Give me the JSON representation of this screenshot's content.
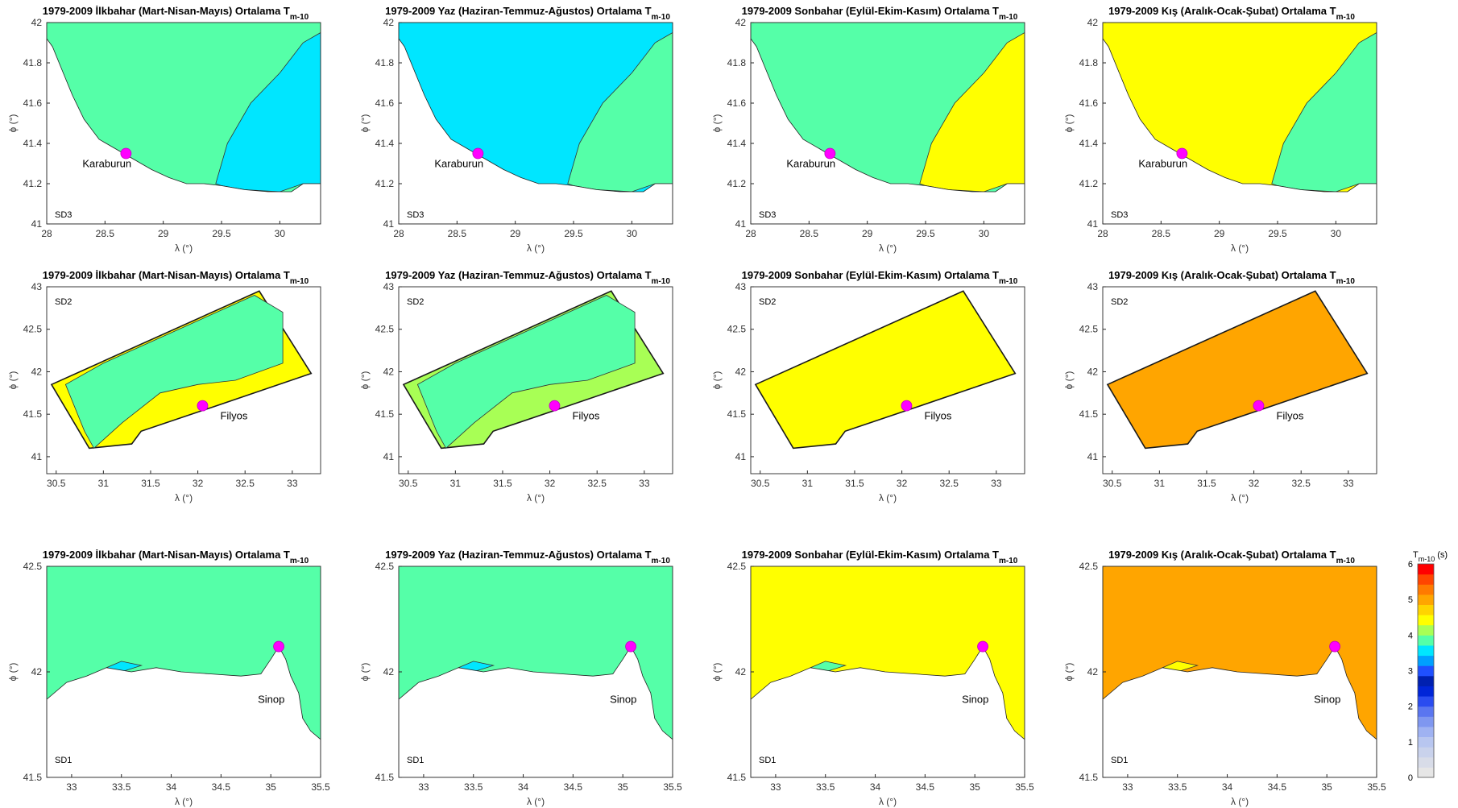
{
  "colorbar": {
    "title": "T",
    "title_sub": "m-10",
    "unit": "(s)",
    "range": [
      0,
      6
    ],
    "ticks": [
      "0",
      "1",
      "2",
      "3",
      "4",
      "5",
      "6"
    ],
    "colors": [
      "#e6e6e6",
      "#d8dce8",
      "#c9d2ec",
      "#b8c6f0",
      "#9fb2f2",
      "#7f97f0",
      "#5a76f0",
      "#2a4cf0",
      "#0025d8",
      "#0020b0",
      "#1f50ff",
      "#00a0ff",
      "#00e6ff",
      "#55ffa8",
      "#a8ff55",
      "#ffff00",
      "#ffd400",
      "#ffa500",
      "#ff7a00",
      "#ff4500",
      "#ff0000"
    ]
  },
  "chart_data": [
    {
      "type": "heatmap",
      "row": 0,
      "col": 0,
      "region": "SD3",
      "site": "Karaburun",
      "title": "1979-2009 İlkbahar (Mart-Nisan-Mayıs) Ortalama T",
      "title_sub": "m-10",
      "xlabel": "λ (°)",
      "ylabel": "ϕ (°)",
      "xlim": [
        28,
        30.35
      ],
      "ylim": [
        41,
        42
      ],
      "xticks": [
        "28",
        "28.5",
        "29",
        "29.5",
        "30"
      ],
      "yticks": [
        "41",
        "41.2",
        "41.4",
        "41.6",
        "41.8",
        "42"
      ],
      "site_point": {
        "x": 28.68,
        "y": 41.35
      },
      "dominant_period_s": 4.0,
      "secondary_period_s": 3.5
    },
    {
      "type": "heatmap",
      "row": 0,
      "col": 1,
      "region": "SD3",
      "site": "Karaburun",
      "title": "1979-2009 Yaz (Haziran-Temmuz-Ağustos) Ortalama T",
      "title_sub": "m-10",
      "xlabel": "λ (°)",
      "ylabel": "ϕ (°)",
      "xlim": [
        28,
        30.35
      ],
      "ylim": [
        41,
        42
      ],
      "xticks": [
        "28",
        "28.5",
        "29",
        "29.5",
        "30"
      ],
      "yticks": [
        "41",
        "41.2",
        "41.4",
        "41.6",
        "41.8",
        "42"
      ],
      "site_point": {
        "x": 28.68,
        "y": 41.35
      },
      "dominant_period_s": 3.5,
      "secondary_period_s": 4.0
    },
    {
      "type": "heatmap",
      "row": 0,
      "col": 2,
      "region": "SD3",
      "site": "Karaburun",
      "title": "1979-2009 Sonbahar (Eylül-Ekim-Kasım) Ortalama T",
      "title_sub": "m-10",
      "xlabel": "λ (°)",
      "ylabel": "ϕ (°)",
      "xlim": [
        28,
        30.35
      ],
      "ylim": [
        41,
        42
      ],
      "xticks": [
        "28",
        "28.5",
        "29",
        "29.5",
        "30"
      ],
      "yticks": [
        "41",
        "41.2",
        "41.4",
        "41.6",
        "41.8",
        "42"
      ],
      "site_point": {
        "x": 28.68,
        "y": 41.35
      },
      "dominant_period_s": 4.0,
      "secondary_period_s": 4.5
    },
    {
      "type": "heatmap",
      "row": 0,
      "col": 3,
      "region": "SD3",
      "site": "Karaburun",
      "title": "1979-2009 Kış (Aralık-Ocak-Şubat) Ortalama T",
      "title_sub": "m-10",
      "xlabel": "λ (°)",
      "ylabel": "ϕ (°)",
      "xlim": [
        28,
        30.35
      ],
      "ylim": [
        41,
        42
      ],
      "xticks": [
        "28",
        "28.5",
        "29",
        "29.5",
        "30"
      ],
      "yticks": [
        "41",
        "41.2",
        "41.4",
        "41.6",
        "41.8",
        "42"
      ],
      "site_point": {
        "x": 28.68,
        "y": 41.35
      },
      "dominant_period_s": 4.5,
      "secondary_period_s": 4.0
    },
    {
      "type": "heatmap",
      "row": 1,
      "col": 0,
      "region": "SD2",
      "site": "Filyos",
      "title": "1979-2009 İlkbahar (Mart-Nisan-Mayıs) Ortalama T",
      "title_sub": "m-10",
      "xlabel": "λ (°)",
      "ylabel": "ϕ (°)",
      "xlim": [
        30.4,
        33.3
      ],
      "ylim": [
        40.8,
        43
      ],
      "xticks": [
        "30.5",
        "31",
        "31.5",
        "32",
        "32.5",
        "33"
      ],
      "yticks": [
        "41",
        "41.5",
        "42",
        "42.5",
        "43"
      ],
      "site_point": {
        "x": 32.05,
        "y": 41.6
      },
      "dominant_period_s": 4.5,
      "secondary_period_s": 4.0
    },
    {
      "type": "heatmap",
      "row": 1,
      "col": 1,
      "region": "SD2",
      "site": "Filyos",
      "title": "1979-2009 Yaz (Haziran-Temmuz-Ağustos) Ortalama T",
      "title_sub": "m-10",
      "xlabel": "λ (°)",
      "ylabel": "ϕ (°)",
      "xlim": [
        30.4,
        33.3
      ],
      "ylim": [
        40.8,
        43
      ],
      "xticks": [
        "30.5",
        "31",
        "31.5",
        "32",
        "32.5",
        "33"
      ],
      "yticks": [
        "41",
        "41.5",
        "42",
        "42.5",
        "43"
      ],
      "site_point": {
        "x": 32.05,
        "y": 41.6
      },
      "dominant_period_s": 4.25,
      "secondary_period_s": 4.0
    },
    {
      "type": "heatmap",
      "row": 1,
      "col": 2,
      "region": "SD2",
      "site": "Filyos",
      "title": "1979-2009 Sonbahar (Eylül-Ekim-Kasım) Ortalama T",
      "title_sub": "m-10",
      "xlabel": "λ (°)",
      "ylabel": "ϕ (°)",
      "xlim": [
        30.4,
        33.3
      ],
      "ylim": [
        40.8,
        43
      ],
      "xticks": [
        "30.5",
        "31",
        "31.5",
        "32",
        "32.5",
        "33"
      ],
      "yticks": [
        "41",
        "41.5",
        "42",
        "42.5",
        "43"
      ],
      "site_point": {
        "x": 32.05,
        "y": 41.6
      },
      "dominant_period_s": 4.5,
      "secondary_period_s": 4.5
    },
    {
      "type": "heatmap",
      "row": 1,
      "col": 3,
      "region": "SD2",
      "site": "Filyos",
      "title": "1979-2009 Kış (Aralık-Ocak-Şubat) Ortalama T",
      "title_sub": "m-10",
      "xlabel": "λ (°)",
      "ylabel": "ϕ (°)",
      "xlim": [
        30.4,
        33.3
      ],
      "ylim": [
        40.8,
        43
      ],
      "xticks": [
        "30.5",
        "31",
        "31.5",
        "32",
        "32.5",
        "33"
      ],
      "yticks": [
        "41",
        "41.5",
        "42",
        "42.5",
        "43"
      ],
      "site_point": {
        "x": 32.05,
        "y": 41.6
      },
      "dominant_period_s": 5.0,
      "secondary_period_s": 5.0
    },
    {
      "type": "heatmap",
      "row": 2,
      "col": 0,
      "region": "SD1",
      "site": "Sinop",
      "title": "1979-2009 İlkbahar (Mart-Nisan-Mayıs) Ortalama T",
      "title_sub": "m-10",
      "xlabel": "λ (°)",
      "ylabel": "ϕ (°)",
      "xlim": [
        32.75,
        35.5
      ],
      "ylim": [
        41.5,
        42.5
      ],
      "xticks": [
        "33",
        "33.5",
        "34",
        "34.5",
        "35",
        "35.5"
      ],
      "yticks": [
        "41.5",
        "42",
        "42.5"
      ],
      "site_point": {
        "x": 35.08,
        "y": 42.12
      },
      "dominant_period_s": 4.0,
      "secondary_period_s": 3.5
    },
    {
      "type": "heatmap",
      "row": 2,
      "col": 1,
      "region": "SD1",
      "site": "Sinop",
      "title": "1979-2009 Yaz (Haziran-Temmuz-Ağustos) Ortalama T",
      "title_sub": "m-10",
      "xlabel": "λ (°)",
      "ylabel": "ϕ (°)",
      "xlim": [
        32.75,
        35.5
      ],
      "ylim": [
        41.5,
        42.5
      ],
      "xticks": [
        "33",
        "33.5",
        "34",
        "34.5",
        "35",
        "35.5"
      ],
      "yticks": [
        "41.5",
        "42",
        "42.5"
      ],
      "site_point": {
        "x": 35.08,
        "y": 42.12
      },
      "dominant_period_s": 4.0,
      "secondary_period_s": 3.5
    },
    {
      "type": "heatmap",
      "row": 2,
      "col": 2,
      "region": "SD1",
      "site": "Sinop",
      "title": "1979-2009 Sonbahar (Eylül-Ekim-Kasım) Ortalama T",
      "title_sub": "m-10",
      "xlabel": "λ (°)",
      "ylabel": "ϕ (°)",
      "xlim": [
        32.75,
        35.5
      ],
      "ylim": [
        41.5,
        42.5
      ],
      "xticks": [
        "33",
        "33.5",
        "34",
        "34.5",
        "35",
        "35.5"
      ],
      "yticks": [
        "41.5",
        "42",
        "42.5"
      ],
      "site_point": {
        "x": 35.08,
        "y": 42.12
      },
      "dominant_period_s": 4.5,
      "secondary_period_s": 4.0
    },
    {
      "type": "heatmap",
      "row": 2,
      "col": 3,
      "region": "SD1",
      "site": "Sinop",
      "title": "1979-2009 Kış (Aralık-Ocak-Şubat) Ortalama T",
      "title_sub": "m-10",
      "xlabel": "λ (°)",
      "ylabel": "ϕ (°)",
      "xlim": [
        32.75,
        35.5
      ],
      "ylim": [
        41.5,
        42.5
      ],
      "xticks": [
        "33",
        "33.5",
        "34",
        "34.5",
        "35",
        "35.5"
      ],
      "yticks": [
        "41.5",
        "42",
        "42.5"
      ],
      "site_point": {
        "x": 35.08,
        "y": 42.12
      },
      "dominant_period_s": 5.0,
      "secondary_period_s": 4.5
    }
  ]
}
